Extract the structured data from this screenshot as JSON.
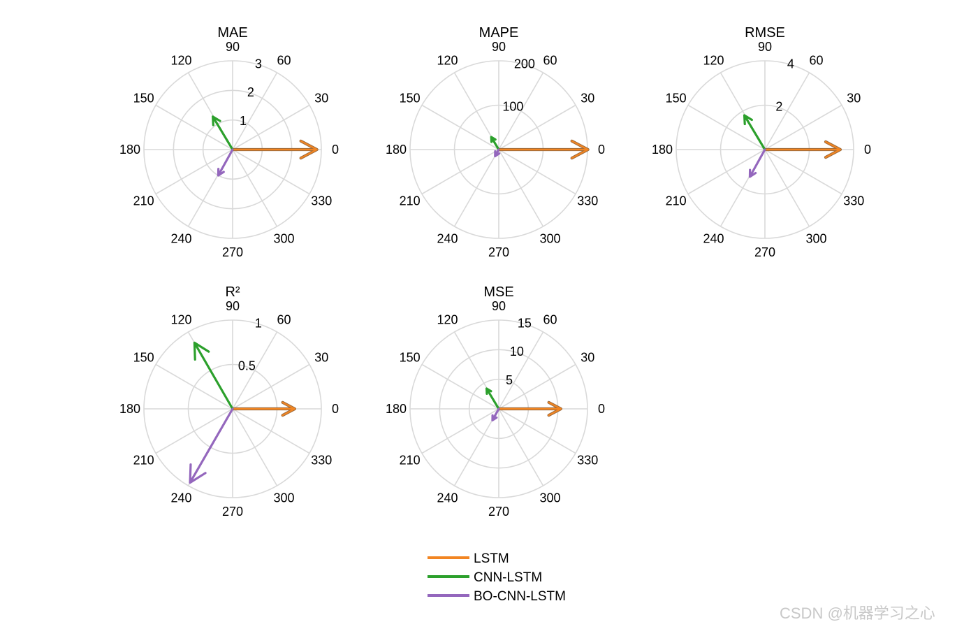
{
  "chart_data": [
    {
      "type": "polar",
      "title": "MAE",
      "rmax": 3,
      "rticks": [
        1,
        2,
        3
      ],
      "theta_ticks": [
        0,
        30,
        60,
        90,
        120,
        150,
        180,
        210,
        240,
        270,
        300,
        330
      ],
      "series": [
        {
          "name": "LSTM",
          "angle": 0,
          "r": 2.85
        },
        {
          "name": "CNN-LSTM",
          "angle": 121,
          "r": 1.3
        },
        {
          "name": "BO-CNN-LSTM",
          "angle": 241,
          "r": 1.0
        }
      ]
    },
    {
      "type": "polar",
      "title": "MAPE",
      "rmax": 200,
      "rticks": [
        100,
        200
      ],
      "theta_ticks": [
        0,
        30,
        60,
        90,
        120,
        150,
        180,
        210,
        240,
        270,
        300,
        330
      ],
      "series": [
        {
          "name": "LSTM",
          "angle": 0,
          "r": 201
        },
        {
          "name": "CNN-LSTM",
          "angle": 121,
          "r": 33
        },
        {
          "name": "BO-CNN-LSTM",
          "angle": 241,
          "r": 17
        }
      ]
    },
    {
      "type": "polar",
      "title": "RMSE",
      "rmax": 4,
      "rticks": [
        2,
        4
      ],
      "theta_ticks": [
        0,
        30,
        60,
        90,
        120,
        150,
        180,
        210,
        240,
        270,
        300,
        330
      ],
      "series": [
        {
          "name": "LSTM",
          "angle": 0,
          "r": 3.4
        },
        {
          "name": "CNN-LSTM",
          "angle": 121,
          "r": 1.8
        },
        {
          "name": "BO-CNN-LSTM",
          "angle": 241,
          "r": 1.4
        }
      ]
    },
    {
      "type": "polar",
      "title": "R²",
      "rmax": 1,
      "rticks": [
        0.5,
        1
      ],
      "theta_ticks": [
        0,
        30,
        60,
        90,
        120,
        150,
        180,
        210,
        240,
        270,
        300,
        330
      ],
      "series": [
        {
          "name": "LSTM",
          "angle": 0,
          "r": 0.7
        },
        {
          "name": "CNN-LSTM",
          "angle": 120,
          "r": 0.86
        },
        {
          "name": "BO-CNN-LSTM",
          "angle": 240,
          "r": 0.96
        }
      ]
    },
    {
      "type": "polar",
      "title": "MSE",
      "rmax": 15,
      "rticks": [
        5,
        10,
        15
      ],
      "theta_ticks": [
        0,
        30,
        60,
        90,
        120,
        150,
        180,
        210,
        240,
        270,
        300,
        330
      ],
      "series": [
        {
          "name": "LSTM",
          "angle": 0,
          "r": 10.5
        },
        {
          "name": "CNN-LSTM",
          "angle": 121,
          "r": 4.0
        },
        {
          "name": "BO-CNN-LSTM",
          "angle": 241,
          "r": 2.2
        }
      ]
    }
  ],
  "legend": {
    "placement": "bottom-center",
    "entries": [
      {
        "name": "LSTM",
        "color": "#f28522"
      },
      {
        "name": "CNN-LSTM",
        "color": "#2ca02c"
      },
      {
        "name": "BO-CNN-LSTM",
        "color": "#9467bd"
      }
    ]
  },
  "style": {
    "grid_color": "#d9d9d9",
    "lstm_edge_color": "#9b6a3c"
  },
  "watermark": "CSDN @机器学习之心"
}
